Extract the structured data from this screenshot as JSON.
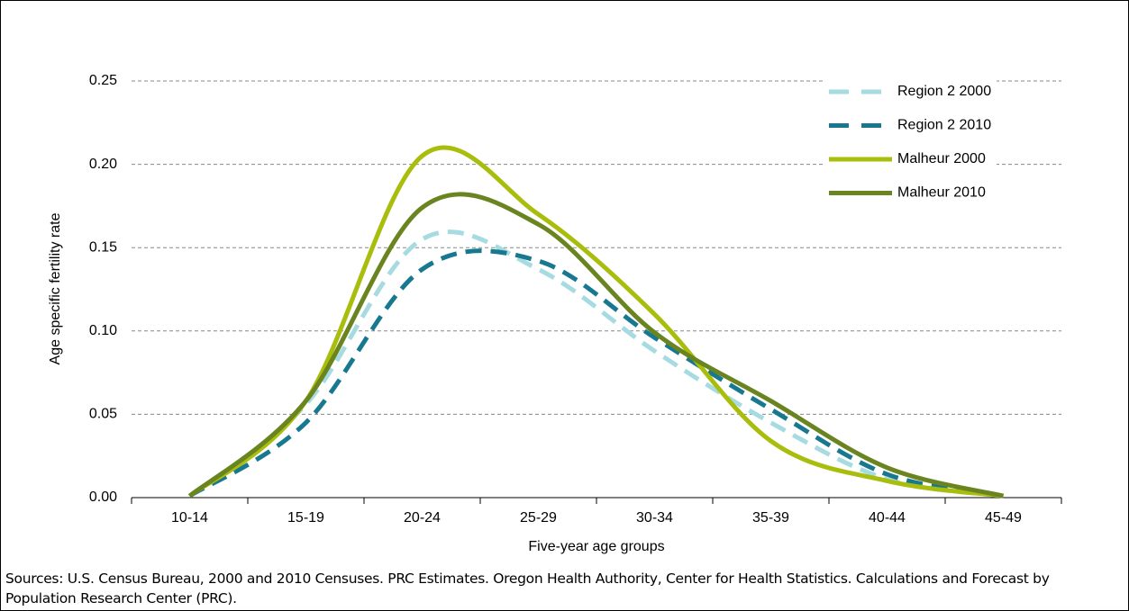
{
  "chart_data": {
    "type": "line",
    "y_label": "Age specific fertility rate",
    "x_label": "Five-year age groups",
    "source": "Sources: U.S. Census Bureau, 2000 and 2010 Censuses. PRC Estimates. Oregon Health Authority, Center for Health Statistics. Calculations and Forecast by Population Research Center (PRC).",
    "categories": [
      "10-14",
      "15-19",
      "20-24",
      "25-29",
      "30-34",
      "35-39",
      "40-44",
      "45-49"
    ],
    "series": [
      {
        "name": "Region 2 2000",
        "color": "#a6dbe2",
        "style": "dashed",
        "values": [
          0.001,
          0.056,
          0.155,
          0.137,
          0.088,
          0.045,
          0.011,
          0.001
        ]
      },
      {
        "name": "Region 2 2010",
        "color": "#17788f",
        "style": "dashed",
        "values": [
          0.001,
          0.045,
          0.137,
          0.142,
          0.096,
          0.053,
          0.014,
          0.001
        ]
      },
      {
        "name": "Malheur 2000",
        "color": "#a9bd0c",
        "style": "solid",
        "values": [
          0.001,
          0.058,
          0.205,
          0.17,
          0.11,
          0.034,
          0.01,
          0.001
        ]
      },
      {
        "name": "Malheur 2010",
        "color": "#6a8420",
        "style": "solid",
        "values": [
          0.001,
          0.058,
          0.174,
          0.164,
          0.099,
          0.058,
          0.018,
          0.001
        ]
      }
    ],
    "ylim": [
      0,
      0.25
    ],
    "yticks": [
      {
        "value": 0,
        "label": "0.00"
      },
      {
        "value": 0.05,
        "label": "0.05"
      },
      {
        "value": 0.1,
        "label": "0.10"
      },
      {
        "value": 0.15,
        "label": "0.15"
      },
      {
        "value": 0.2,
        "label": "0.20"
      },
      {
        "value": 0.25,
        "label": "0.25"
      }
    ],
    "grid": true,
    "legend": "upper right"
  }
}
